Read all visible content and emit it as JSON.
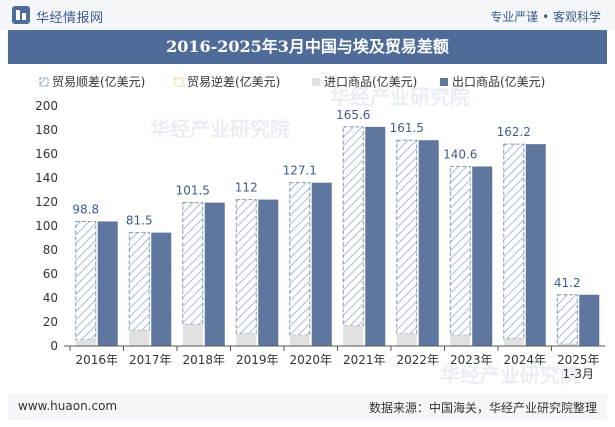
{
  "header": {
    "brand": "华经情报网",
    "slogan": "专业严谨 • 客观科学",
    "title": "2016-2025年3月中国与埃及贸易差额"
  },
  "watermark": "华经产业研究院",
  "footer": {
    "url": "www.huaon.com",
    "source": "数据来源：中国海关，华经产业研究院整理"
  },
  "colors": {
    "surplus": "#7f9ab3",
    "deficit": "#e9cf6a",
    "import": "#e1e1e1",
    "export": "#5f779f",
    "title_bg": "#4f6c98"
  },
  "chart_data": {
    "type": "bar",
    "title": "2016-2025年3月中国与埃及贸易差额",
    "categories": [
      "2016年",
      "2017年",
      "2018年",
      "2019年",
      "2020年",
      "2021年",
      "2022年",
      "2023年",
      "2024年",
      "2025年\n1-3月"
    ],
    "series": [
      {
        "name": "贸易顺差(亿美元)",
        "values": [
          98.8,
          81.5,
          101.5,
          112,
          127.1,
          165.6,
          161.5,
          140.6,
          162.2,
          41.2
        ]
      },
      {
        "name": "贸易逆差(亿美元)",
        "values": [
          0,
          0,
          0,
          0,
          0,
          0,
          0,
          0,
          0,
          0
        ]
      },
      {
        "name": "进口商品(亿美元)",
        "values": [
          5,
          13,
          18,
          10,
          9,
          17,
          10,
          9,
          6,
          1.5
        ]
      },
      {
        "name": "出口商品(亿美元)",
        "values": [
          103.8,
          94.5,
          119.5,
          122,
          136.1,
          182.6,
          171.5,
          149.6,
          168.2,
          42.7
        ]
      }
    ],
    "ylim": [
      0,
      200
    ],
    "yticks": [
      0,
      20,
      40,
      60,
      80,
      100,
      120,
      140,
      160,
      180,
      200
    ],
    "legend_position": "top"
  }
}
